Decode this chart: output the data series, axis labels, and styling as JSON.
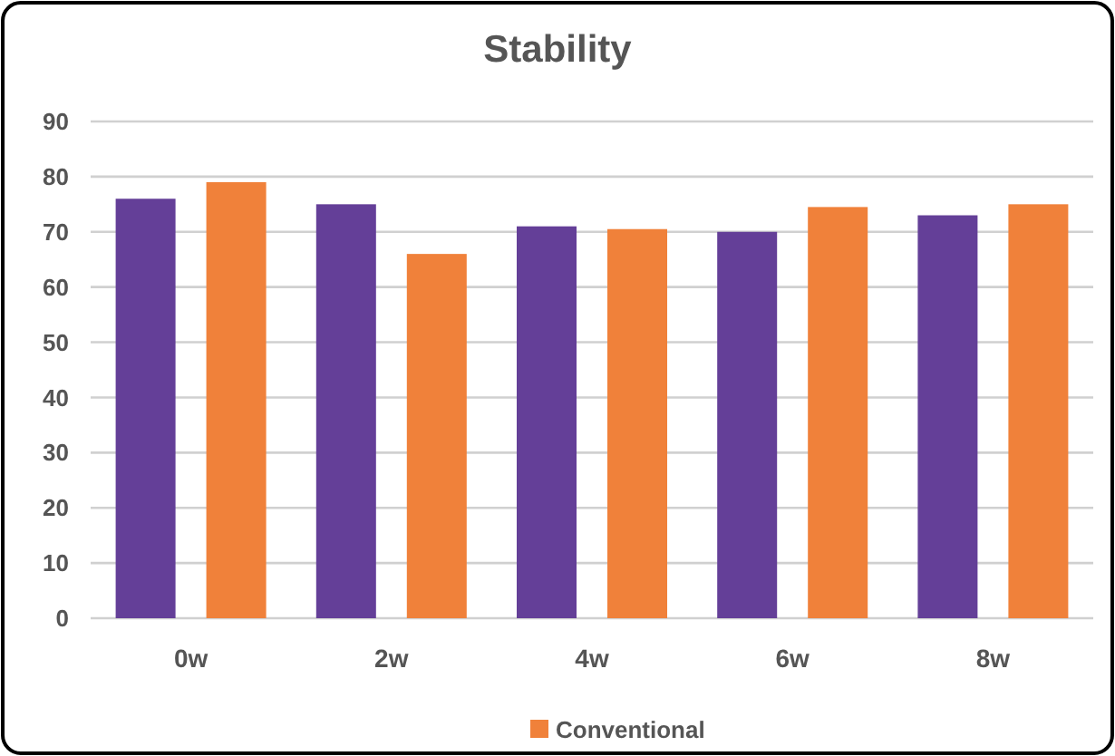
{
  "chart_data": {
    "type": "bar",
    "title": "Stability",
    "categories": [
      "0w",
      "2w",
      "4w",
      "6w",
      "8w"
    ],
    "series": [
      {
        "color": "#643f98",
        "values": [
          76,
          75,
          71,
          70,
          73
        ]
      },
      {
        "name": "Conventional",
        "color": "#f0813a",
        "values": [
          79,
          66,
          70.5,
          74.5,
          75
        ]
      }
    ],
    "ylim": [
      0,
      90
    ],
    "yticks": [
      0,
      10,
      20,
      30,
      40,
      50,
      60,
      70,
      80,
      90
    ],
    "grid": "y",
    "legend": "bottom"
  }
}
